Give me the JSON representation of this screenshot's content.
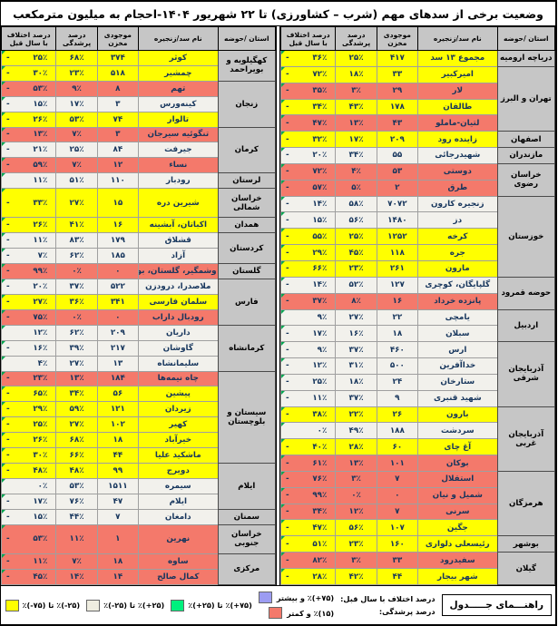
{
  "title": "وضعیت برخی از سدهای مهم (شرب – کشاورزی) تا ۲۲ شهریور ۱۴۰۴-احجام به میلیون مترمکعب",
  "columns": [
    "استان /حوضه",
    "نام سد/زنجیره",
    "موجودی مخزن",
    "درصد پرشدگی",
    "درصد اختلاف با سال قبل"
  ],
  "colors": {
    "yellow": "#ffff00",
    "red": "#f4796b",
    "white": "#f2f1ec",
    "province_gray": "#c6c6c6",
    "legend_purple": "#9c9cf2",
    "legend_green": "#00f17e",
    "legend_beige": "#efede0",
    "legend_orange": "#e2690b"
  },
  "right_table": {
    "groups": [
      {
        "province": "دریاچه ارومیه",
        "rows": [
          {
            "name": "مجموع ۱۳ سد",
            "volume": "۴۱۷",
            "fill": "۲۵٪",
            "diff": "-۳۶٪",
            "color": "yellow"
          }
        ]
      },
      {
        "province": "تهران و البرز",
        "rows": [
          {
            "name": "امیرکبیر",
            "volume": "۳۳",
            "fill": "۱۸٪",
            "diff": "-۷۲٪",
            "color": "yellow"
          },
          {
            "name": "لار",
            "volume": "۲۹",
            "fill": "۳٪",
            "diff": "-۳۵٪",
            "color": "red"
          },
          {
            "name": "طالقان",
            "volume": "۱۷۸",
            "fill": "۴۳٪",
            "diff": "-۳۴٪",
            "color": "yellow"
          },
          {
            "name": "لتیان-ماملو",
            "volume": "۴۳",
            "fill": "۱۳٪",
            "diff": "-۴۷٪",
            "color": "red"
          }
        ]
      },
      {
        "province": "اصفهان",
        "rows": [
          {
            "name": "زاینده رود",
            "volume": "۲۰۹",
            "fill": "۱۷٪",
            "diff": "-۳۲٪",
            "color": "yellow"
          }
        ]
      },
      {
        "province": "مازندران",
        "rows": [
          {
            "name": "شهیدرجائی",
            "volume": "۵۵",
            "fill": "۳۴٪",
            "diff": "-۲۰٪",
            "color": "white"
          }
        ]
      },
      {
        "province": "خراسان رضوی",
        "rows": [
          {
            "name": "دوستی",
            "volume": "۵۳",
            "fill": "۴٪",
            "diff": "-۷۲٪",
            "color": "red"
          },
          {
            "name": "طرق",
            "volume": "۲",
            "fill": "۵٪",
            "diff": "-۵۷٪",
            "color": "red"
          }
        ]
      },
      {
        "province": "خوزستان",
        "rows": [
          {
            "name": "زنجیره کارون",
            "volume": "۷۰۷۲",
            "fill": "۵۸٪",
            "diff": "-۱۴٪",
            "color": "white"
          },
          {
            "name": "دز",
            "volume": "۱۴۸۰",
            "fill": "۵۶٪",
            "diff": "-۱۵٪",
            "color": "white"
          },
          {
            "name": "کرخه",
            "volume": "۱۲۵۲",
            "fill": "۲۵٪",
            "diff": "-۵۵٪",
            "color": "yellow"
          },
          {
            "name": "جره",
            "volume": "۱۱۸",
            "fill": "۴۵٪",
            "diff": "-۲۹٪",
            "color": "yellow"
          },
          {
            "name": "مارون",
            "volume": "۲۶۱",
            "fill": "۲۳٪",
            "diff": "-۶۶٪",
            "color": "yellow"
          }
        ]
      },
      {
        "province": "حوضه قمرود",
        "rows": [
          {
            "name": "گلپایگان، کوچری",
            "volume": "۱۲۷",
            "fill": "۵۲٪",
            "diff": "-۱۴٪",
            "color": "white"
          },
          {
            "name": "پانزده خرداد",
            "volume": "۱۶",
            "fill": "۸٪",
            "diff": "-۳۷٪",
            "color": "red"
          }
        ]
      },
      {
        "province": "اردبیل",
        "rows": [
          {
            "name": "یامچی",
            "volume": "۲۲",
            "fill": "۲۷٪",
            "diff": "۹٪",
            "color": "white"
          },
          {
            "name": "سبلان",
            "volume": "۱۸",
            "fill": "۱۶٪",
            "diff": "-۱۷٪",
            "color": "white"
          }
        ]
      },
      {
        "province": "آذربایجان شرقی",
        "rows": [
          {
            "name": "ارس",
            "volume": "۴۶۰",
            "fill": "۳۷٪",
            "diff": "-۹٪",
            "color": "white"
          },
          {
            "name": "خداآفرین",
            "volume": "۵۰۰",
            "fill": "۳۱٪",
            "diff": "-۱۲٪",
            "color": "white"
          },
          {
            "name": "ستارخان",
            "volume": "۲۴",
            "fill": "۱۸٪",
            "diff": "-۲۵٪",
            "color": "white"
          },
          {
            "name": "شهید قنبری",
            "volume": "۹",
            "fill": "۳۷٪",
            "diff": "-۱۱٪",
            "color": "white"
          }
        ]
      },
      {
        "province": "آذربایجان غربی",
        "rows": [
          {
            "name": "بارون",
            "volume": "۲۶",
            "fill": "۲۲٪",
            "diff": "-۳۸٪",
            "color": "yellow"
          },
          {
            "name": "سردشت",
            "volume": "۱۸۸",
            "fill": "۴۹٪",
            "diff": "۰٪",
            "color": "white"
          },
          {
            "name": "آغ چای",
            "volume": "۶۰",
            "fill": "۲۸٪",
            "diff": "-۴۰٪",
            "color": "yellow"
          },
          {
            "name": "بوکان",
            "volume": "۱۰۱",
            "fill": "۱۳٪",
            "diff": "-۶۱٪",
            "color": "red"
          }
        ]
      },
      {
        "province": "هرمزگان",
        "rows": [
          {
            "name": "استقلال",
            "volume": "۷",
            "fill": "۳٪",
            "diff": "-۷۶٪",
            "color": "red"
          },
          {
            "name": "شمیل و نیان",
            "volume": "۰",
            "fill": "۰٪",
            "diff": "-۹۹٪",
            "color": "red"
          },
          {
            "name": "سرنی",
            "volume": "۷",
            "fill": "۱۲٪",
            "diff": "-۳۴٪",
            "color": "red"
          },
          {
            "name": "جگین",
            "volume": "۱۰۷",
            "fill": "۵۶٪",
            "diff": "-۴۷٪",
            "color": "yellow"
          }
        ]
      },
      {
        "province": "بوشهر",
        "rows": [
          {
            "name": "رئیسعلی دلواری",
            "volume": "۱۶۰",
            "fill": "۲۳٪",
            "diff": "-۵۱٪",
            "color": "yellow"
          }
        ]
      },
      {
        "province": "گیلان",
        "rows": [
          {
            "name": "سفیدرود",
            "volume": "۳۳",
            "fill": "۳٪",
            "diff": "-۸۲٪",
            "color": "red"
          },
          {
            "name": "شهر بیجار",
            "volume": "۴۴",
            "fill": "۴۲٪",
            "diff": "-۲۸٪",
            "color": "yellow"
          }
        ]
      }
    ]
  },
  "left_table": {
    "groups": [
      {
        "province": "کهگیلویه و بویراحمد",
        "rows": [
          {
            "name": "کوثر",
            "volume": "۳۷۴",
            "fill": "۶۸٪",
            "diff": "-۲۵٪",
            "color": "yellow"
          },
          {
            "name": "چمشیر",
            "volume": "۵۱۸",
            "fill": "۲۳٪",
            "diff": "-۳۰٪",
            "color": "yellow"
          }
        ]
      },
      {
        "province": "زنجان",
        "rows": [
          {
            "name": "تهم",
            "volume": "۸",
            "fill": "۹٪",
            "diff": "-۵۳٪",
            "color": "red"
          },
          {
            "name": "کینه‌ورس",
            "volume": "۳",
            "fill": "۱۷٪",
            "diff": "-۱۵٪",
            "color": "white"
          },
          {
            "name": "تالوار",
            "volume": "۷۴",
            "fill": "۵۳٪",
            "diff": "-۲۶٪",
            "color": "yellow"
          }
        ]
      },
      {
        "province": "کرمان",
        "rows": [
          {
            "name": "تنگوئیه سیرجان",
            "volume": "۳",
            "fill": "۷٪",
            "diff": "-۱۳٪",
            "color": "red"
          },
          {
            "name": "جیرفت",
            "volume": "۸۴",
            "fill": "۲۵٪",
            "diff": "-۲۱٪",
            "color": "white"
          },
          {
            "name": "نساء",
            "volume": "۱۲",
            "fill": "۷٪",
            "diff": "-۵۹٪",
            "color": "red"
          }
        ]
      },
      {
        "province": "لرستان",
        "rows": [
          {
            "name": "رودبار",
            "volume": "۱۱۰",
            "fill": "۵۱٪",
            "diff": "۱۱٪",
            "color": "white"
          }
        ]
      },
      {
        "province": "خراسان شمالی",
        "rows": [
          {
            "name": "شیرین دره",
            "volume": "۱۵",
            "fill": "۲۷٪",
            "diff": "-۳۳٪",
            "color": "yellow"
          }
        ]
      },
      {
        "province": "همدان",
        "rows": [
          {
            "name": "اکباتان، آبشینه",
            "volume": "۱۶",
            "fill": "۴۱٪",
            "diff": "-۲۶٪",
            "color": "yellow"
          }
        ]
      },
      {
        "province": "کردستان",
        "rows": [
          {
            "name": "قشلاق",
            "volume": "۱۷۹",
            "fill": "۸۳٪",
            "diff": "-۱۱٪",
            "color": "white"
          },
          {
            "name": "آزاد",
            "volume": "۱۸۵",
            "fill": "۶۲٪",
            "diff": "-۷٪",
            "color": "white"
          }
        ]
      },
      {
        "province": "گلستان",
        "rows": [
          {
            "name": "وشمگیر، گلستان، بوستان",
            "volume": "۰",
            "fill": "۰٪",
            "diff": "-۹۹٪",
            "color": "red"
          }
        ]
      },
      {
        "province": "فارس",
        "rows": [
          {
            "name": "ملاصدرا، درودزن",
            "volume": "۵۲۲",
            "fill": "۳۷٪",
            "diff": "-۲۰٪",
            "color": "white"
          },
          {
            "name": "سلمان فارسی",
            "volume": "۳۴۱",
            "fill": "۳۶٪",
            "diff": "-۲۷٪",
            "color": "yellow"
          },
          {
            "name": "رودبال داراب",
            "volume": "۰",
            "fill": "۰٪",
            "diff": "-۷۵٪",
            "color": "red"
          }
        ]
      },
      {
        "province": "کرمانشاه",
        "rows": [
          {
            "name": "داریان",
            "volume": "۲۰۹",
            "fill": "۶۲٪",
            "diff": "۱۲٪",
            "color": "white"
          },
          {
            "name": "گاوشان",
            "volume": "۲۱۷",
            "fill": "۳۹٪",
            "diff": "-۱۶٪",
            "color": "white"
          },
          {
            "name": "سلیمانشاه",
            "volume": "۱۳",
            "fill": "۲۷٪",
            "diff": "۴٪",
            "color": "white"
          }
        ]
      },
      {
        "province": "سیستان و بلوچستان",
        "rows": [
          {
            "name": "چاه نیمه‌ها",
            "volume": "۱۸۴",
            "fill": "۱۳٪",
            "diff": "-۲۳٪",
            "color": "red"
          },
          {
            "name": "پیشین",
            "volume": "۵۶",
            "fill": "۳۴٪",
            "diff": "-۶۵٪",
            "color": "yellow"
          },
          {
            "name": "زیردان",
            "volume": "۱۲۱",
            "fill": "۵۹٪",
            "diff": "-۲۹٪",
            "color": "yellow"
          },
          {
            "name": "کهیر",
            "volume": "۱۰۲",
            "fill": "۲۷٪",
            "diff": "-۲۵٪",
            "color": "yellow"
          },
          {
            "name": "خیرآباد",
            "volume": "۱۸",
            "fill": "۶۸٪",
            "diff": "-۲۶٪",
            "color": "yellow"
          },
          {
            "name": "ماشکید علیا",
            "volume": "۴۴",
            "fill": "۶۶٪",
            "diff": "-۳۰٪",
            "color": "yellow"
          }
        ]
      },
      {
        "province": "ایلام",
        "rows": [
          {
            "name": "دویرج",
            "volume": "۹۹",
            "fill": "۴۸٪",
            "diff": "-۴۸٪",
            "color": "yellow"
          },
          {
            "name": "سیمره",
            "volume": "۱۵۱۱",
            "fill": "۵۳٪",
            "diff": "۰٪",
            "color": "white"
          },
          {
            "name": "ایلام",
            "volume": "۴۷",
            "fill": "۷۶٪",
            "diff": "-۱۷٪",
            "color": "white"
          }
        ]
      },
      {
        "province": "سمنان",
        "rows": [
          {
            "name": "دامغان",
            "volume": "۷",
            "fill": "۴۴٪",
            "diff": "-۱۵٪",
            "color": "white"
          }
        ]
      },
      {
        "province": "خراسان جنوبی",
        "rows": [
          {
            "name": "نهرین",
            "volume": "۱",
            "fill": "۱۱٪",
            "diff": "-۵۳٪",
            "color": "red"
          }
        ]
      },
      {
        "province": "مرکزی",
        "rows": [
          {
            "name": "ساوه",
            "volume": "۱۸",
            "fill": "۷٪",
            "diff": "-۱۱٪",
            "color": "red"
          },
          {
            "name": "کمال صالح",
            "volume": "۱۴",
            "fill": "۱۴٪",
            "diff": "-۴۵٪",
            "color": "red"
          }
        ]
      }
    ]
  },
  "legend": {
    "guide_title": "راهنـــمای جـــــدول",
    "diff_row_label": "درصد اختلاف با سال قبل:",
    "fill_row_label": "درصد پرشدگی:",
    "diff_high_label": "(۷۵+)٪ و بیشتر",
    "fill_low_label": "(۱۵)٪ و کمتر",
    "scale": [
      {
        "label": "(۷۵+)٪ تا (۲۵+)٪",
        "color_key": "legend_green"
      },
      {
        "label": "(۲۵+)٪ تا (۲۵-)٪",
        "color_key": "legend_beige"
      },
      {
        "label": "(۲۵-)٪ تا (۷۵-)٪",
        "color_key": "yellow"
      },
      {
        "label": "(۷۵-)٪ و کمتر",
        "color_key": "legend_orange"
      }
    ]
  }
}
